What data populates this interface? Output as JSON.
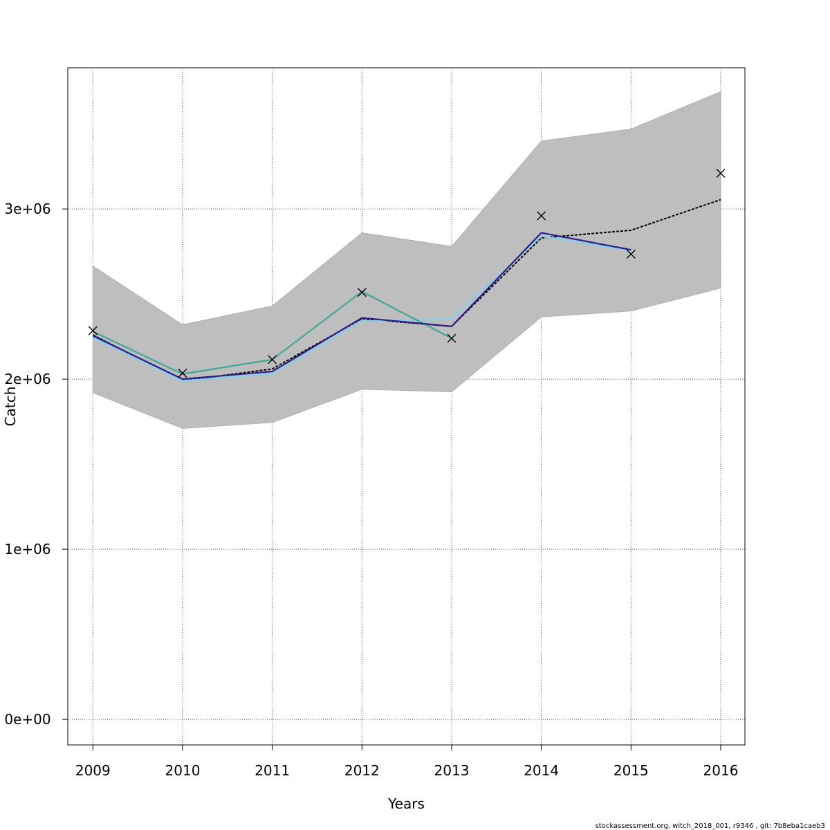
{
  "footer_text": "stockassessment.org, witch_2018_001, r9346 , git: 7b8eba1caeb3",
  "chart_data": {
    "type": "line",
    "xlabel": "Years",
    "ylabel": "Catch",
    "xlim": [
      2008.72,
      2016.27
    ],
    "ylim": [
      -150000,
      3830000
    ],
    "x_ticks": [
      2009,
      2010,
      2011,
      2012,
      2013,
      2014,
      2015,
      2016
    ],
    "y_ticks": [
      0,
      1000000,
      2000000,
      3000000
    ],
    "y_tick_labels": [
      "0e+00",
      "1e+06",
      "2e+06",
      "3e+06"
    ],
    "grid": true,
    "legend": "none",
    "band": {
      "color": "#bebebe",
      "x": [
        2009,
        2010,
        2011,
        2012,
        2013,
        2014,
        2015,
        2016
      ],
      "lower": [
        1920000,
        1710000,
        1745000,
        1940000,
        1925000,
        2365000,
        2400000,
        2535000
      ],
      "upper": [
        2665000,
        2320000,
        2430000,
        2860000,
        2780000,
        3400000,
        3470000,
        3690000
      ]
    },
    "series": [
      {
        "color": "#000000",
        "dashed": true,
        "x": [
          2009,
          2010,
          2011,
          2012,
          2013,
          2014,
          2015,
          2016
        ],
        "values": [
          2260000,
          1990000,
          2060000,
          2355000,
          2310000,
          2830000,
          2875000,
          3055000
        ]
      },
      {
        "color": "#87ceeb",
        "x": [
          2009,
          2010,
          2011,
          2012,
          2013,
          2014,
          2015
        ],
        "values": [
          2245000,
          1990000,
          2030000,
          2340000,
          2355000,
          2840000,
          2755000
        ]
      },
      {
        "color": "#3fa896",
        "x": [
          2009,
          2010,
          2011,
          2012,
          2013
        ],
        "values": [
          2280000,
          2030000,
          2115000,
          2515000,
          2240000
        ]
      },
      {
        "color": "#2b1d8a",
        "x": [
          2009,
          2010,
          2011,
          2012,
          2013,
          2014,
          2015
        ],
        "values": [
          2255000,
          2000000,
          2045000,
          2360000,
          2310000,
          2860000,
          2760000
        ]
      }
    ],
    "observed": {
      "marker": "x",
      "color": "#000000",
      "x": [
        2009,
        2010,
        2011,
        2012,
        2013,
        2014,
        2015,
        2016
      ],
      "values": [
        2285000,
        2035000,
        2115000,
        2510000,
        2240000,
        2960000,
        2735000,
        3210000
      ]
    }
  }
}
